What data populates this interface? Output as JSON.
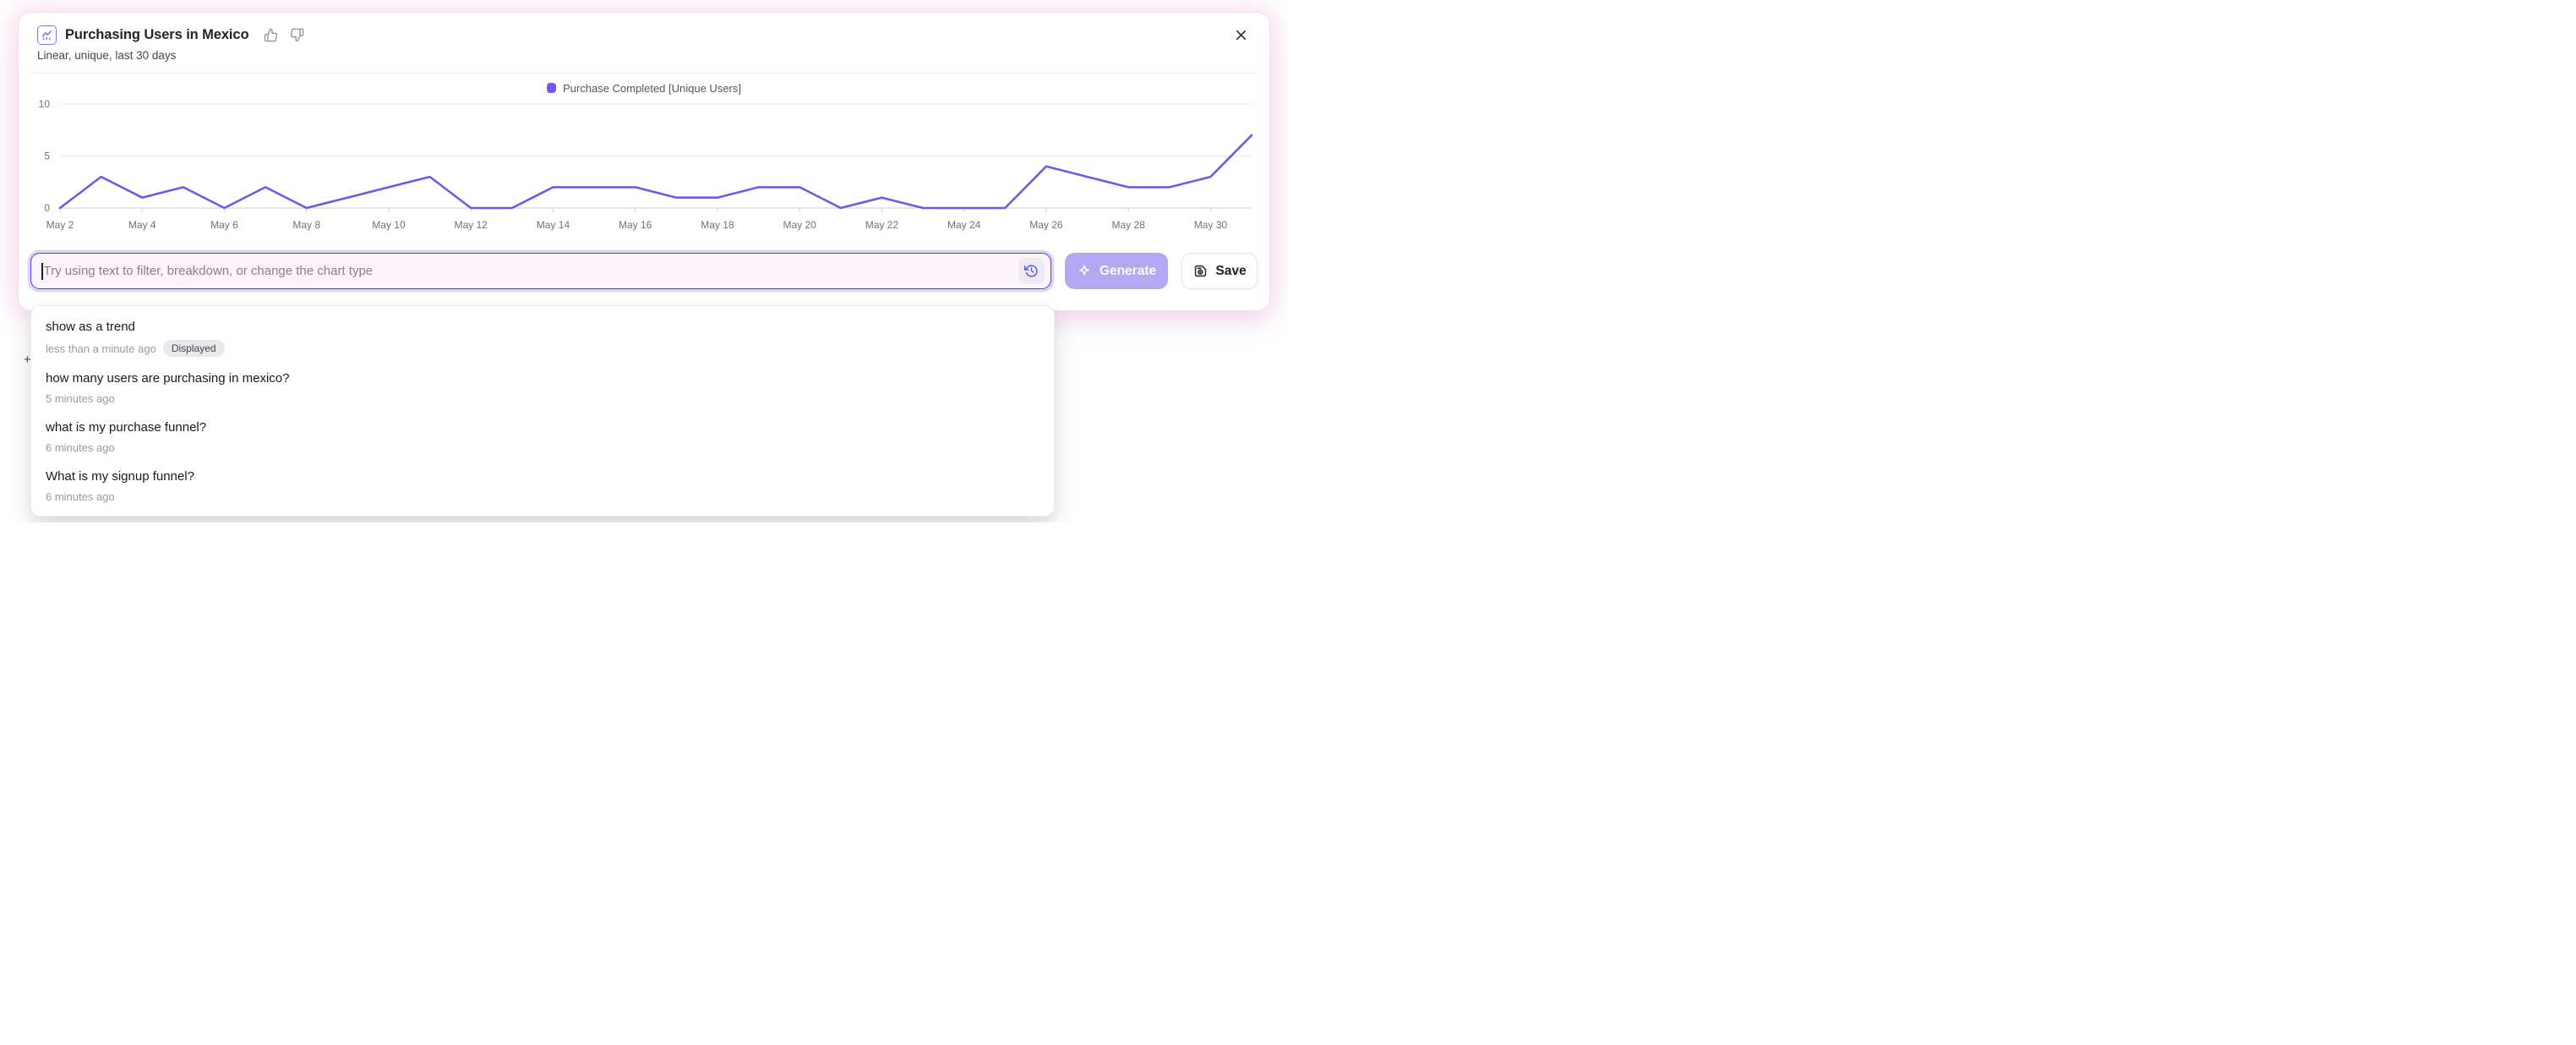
{
  "page": {
    "background_plus": "+"
  },
  "header": {
    "title": "Purchasing Users in Mexico",
    "subtitle": "Linear, unique, last 30 days"
  },
  "chart_data": {
    "type": "line",
    "title": "Purchasing Users in Mexico",
    "x": [
      "May 2",
      "May 3",
      "May 4",
      "May 5",
      "May 6",
      "May 7",
      "May 8",
      "May 9",
      "May 10",
      "May 11",
      "May 12",
      "May 13",
      "May 14",
      "May 15",
      "May 16",
      "May 17",
      "May 18",
      "May 19",
      "May 20",
      "May 21",
      "May 22",
      "May 23",
      "May 24",
      "May 25",
      "May 26",
      "May 27",
      "May 28",
      "May 29",
      "May 30",
      "May 31"
    ],
    "series": [
      {
        "name": "Purchase Completed [Unique Users]",
        "values": [
          0,
          3,
          1,
          2,
          0,
          2,
          0,
          1,
          2,
          3,
          0,
          0,
          2,
          2,
          2,
          1,
          1,
          2,
          2,
          0,
          1,
          0,
          0,
          0,
          4,
          3,
          2,
          2,
          3,
          7
        ]
      }
    ],
    "ylim": [
      0,
      10
    ],
    "yticks": [
      0,
      5,
      10
    ],
    "tick_every": 2,
    "grid": true,
    "legend_position": "top-center",
    "line_color": "#6C5BE6",
    "legend_swatch_color": "#7A55F3",
    "grid_color": "#E9E9ED",
    "axis_line_color": "#D7D7DE",
    "axis_text_color": "#71717A"
  },
  "input": {
    "placeholder": "Try using text to filter, breakdown, or change the chart type"
  },
  "buttons": {
    "generate": "Generate",
    "save": "Save"
  },
  "history": {
    "items": [
      {
        "query": "show as a trend",
        "time": "less than a minute ago",
        "badge": "Displayed"
      },
      {
        "query": "how many users are purchasing in mexico?",
        "time": "5 minutes ago"
      },
      {
        "query": "what is my purchase funnel?",
        "time": "6 minutes ago"
      },
      {
        "query": "What is my signup funnel?",
        "time": "6 minutes ago"
      }
    ]
  }
}
